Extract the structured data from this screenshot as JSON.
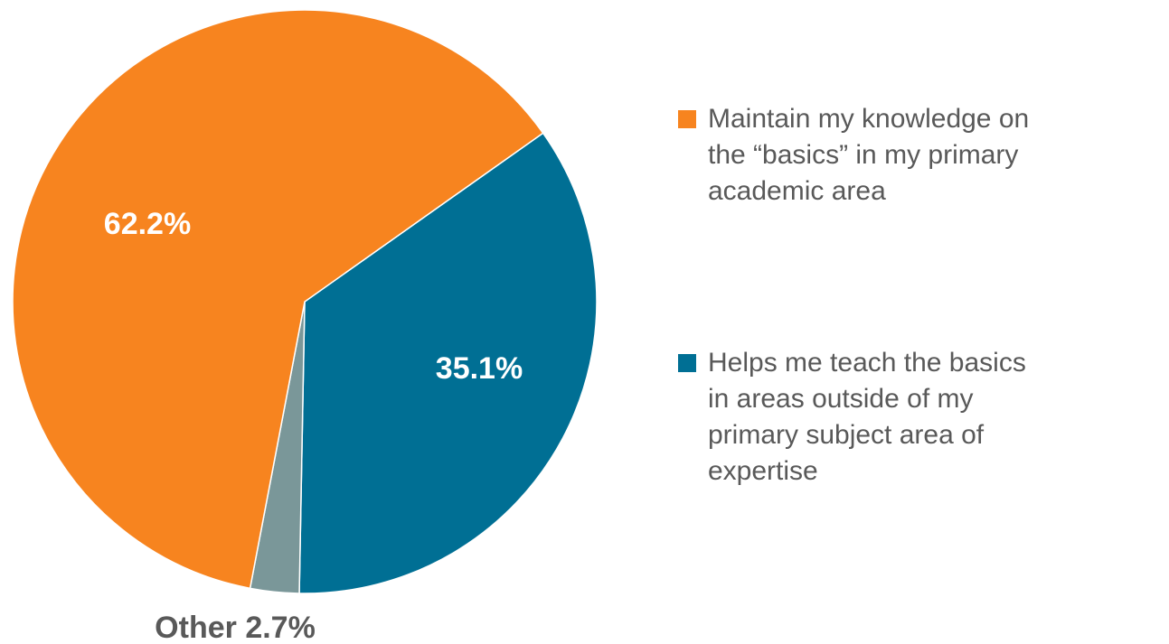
{
  "chart_data": {
    "type": "pie",
    "categories": [
      "Helps me teach the basics in areas outside of my primary subject area of expertise",
      "Other",
      "Maintain my knowledge on the “basics” in my primary academic area"
    ],
    "values": [
      35.1,
      2.7,
      62.2
    ],
    "value_labels": [
      "35.1%",
      "2.7%",
      "62.2%"
    ],
    "colors": [
      "#006f94",
      "#7a9799",
      "#f7841f"
    ],
    "legend": [
      {
        "name": "Maintain my knowledge on\nthe “basics” in my primary\nacademic area",
        "color": "#f7841f"
      },
      {
        "name": "Helps me teach the basics\nin areas outside of my\nprimary subject area of\nexpertise",
        "color": "#006f94"
      }
    ]
  }
}
